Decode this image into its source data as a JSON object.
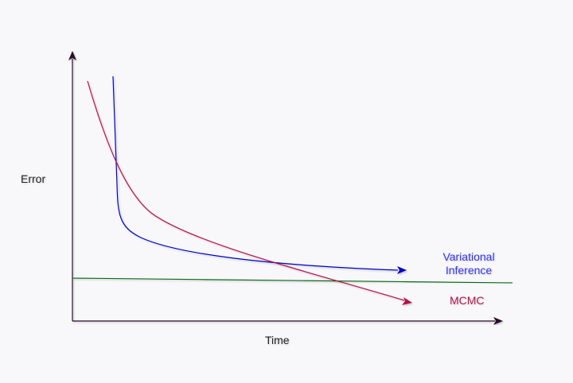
{
  "axes": {
    "x_label": "Time",
    "y_label": "Error"
  },
  "series": {
    "variational": {
      "label_line1": "Variational",
      "label_line2": "Inference",
      "color": "#0000cc",
      "label_color": "#3333ee"
    },
    "mcmc": {
      "label": "MCMC",
      "color": "#b8104a",
      "label_color": "#b8164a"
    },
    "baseline": {
      "color": "#0a6b1a"
    }
  },
  "colors": {
    "axis": "#2a0a2a",
    "background": "#f8f8fa"
  }
}
